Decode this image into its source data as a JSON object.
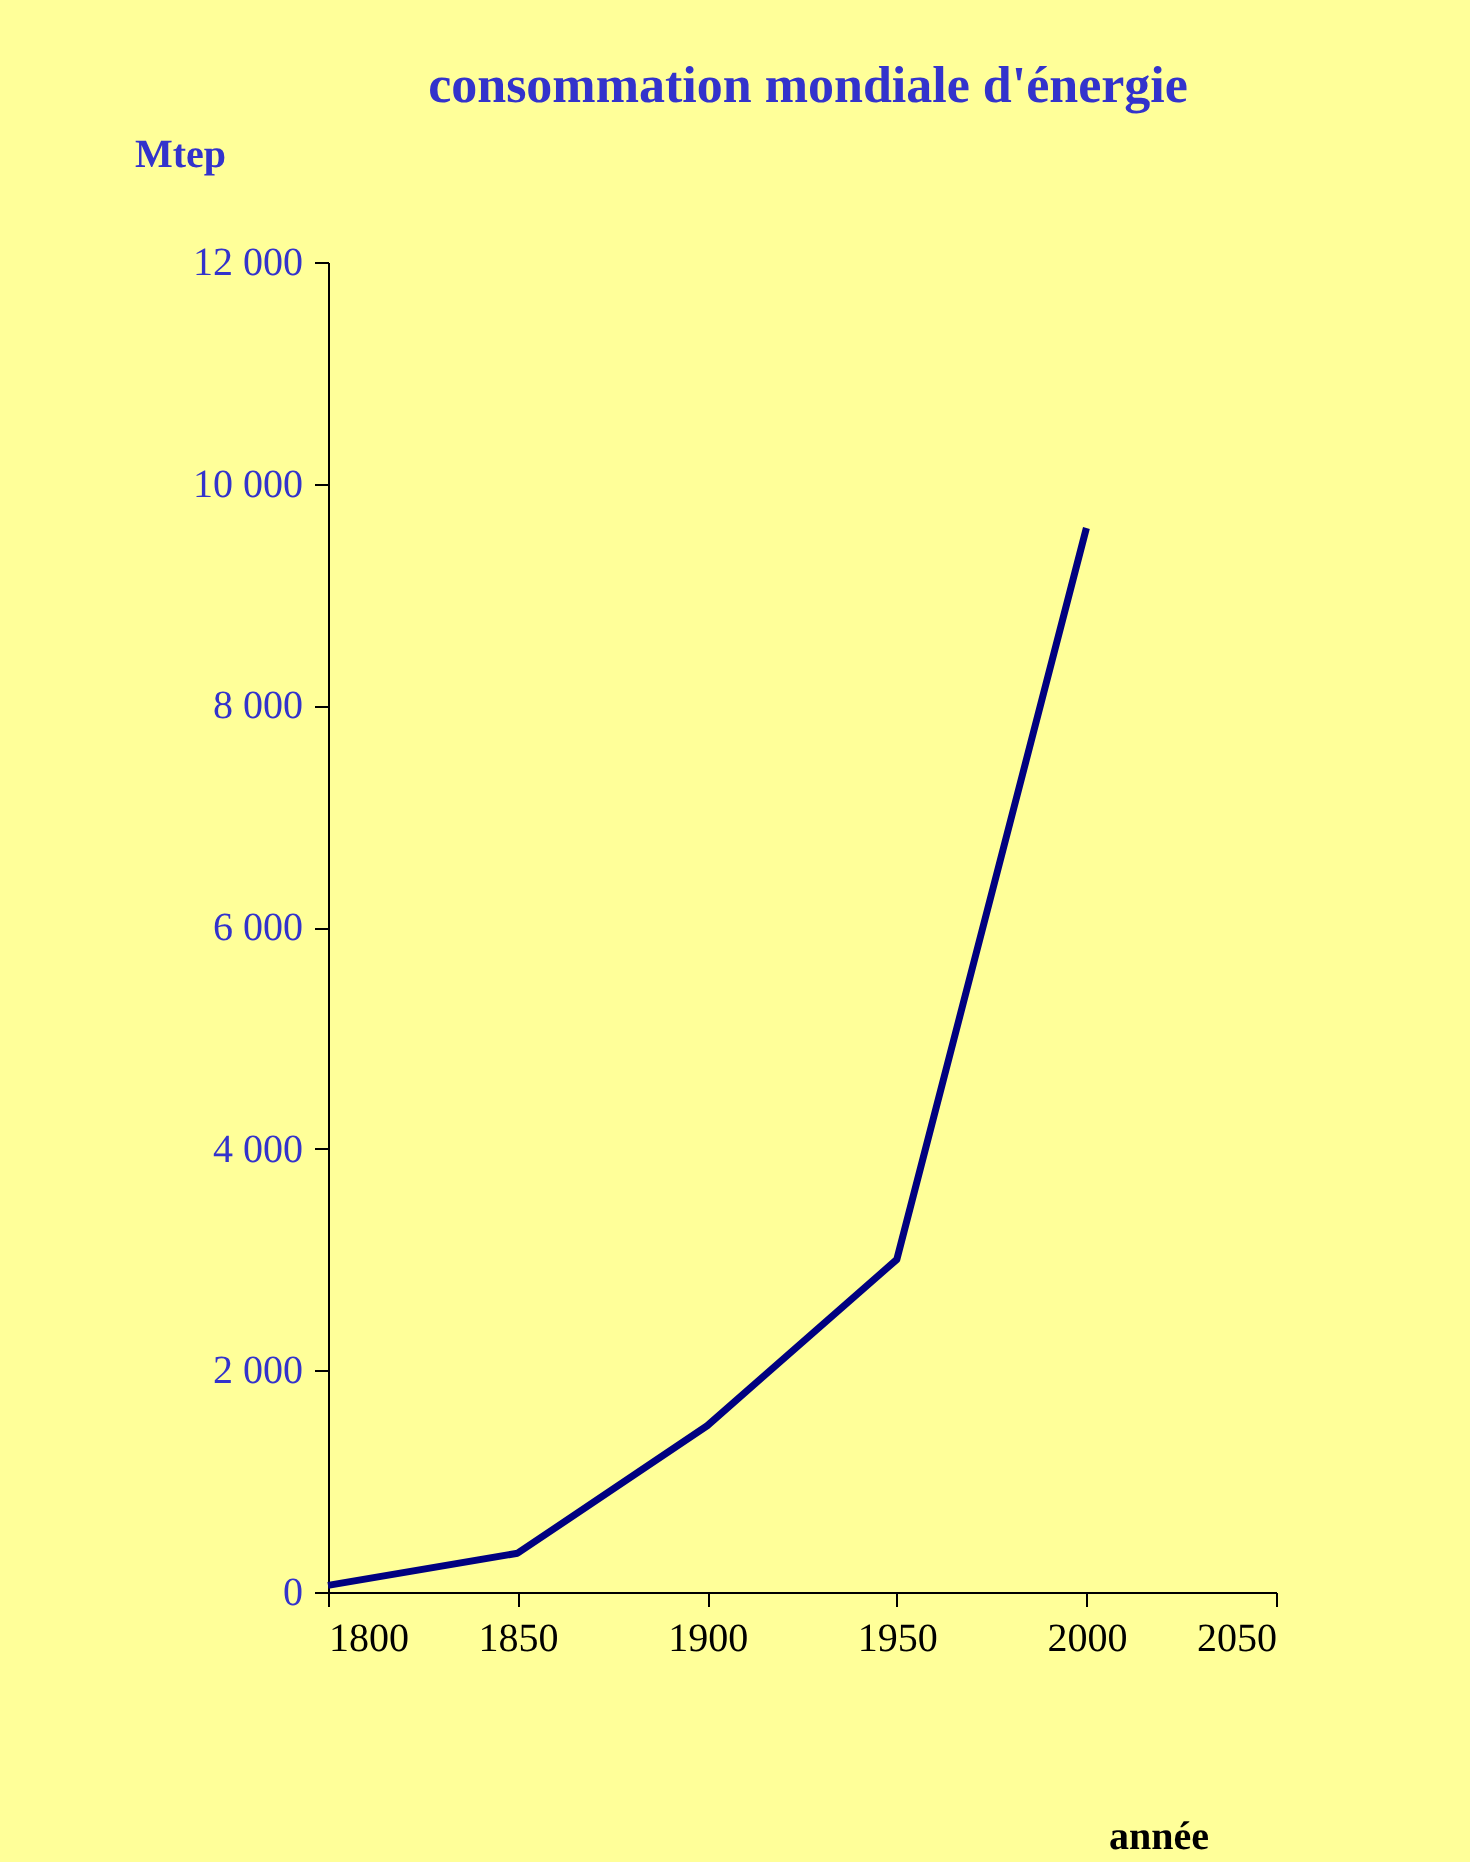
{
  "chart_data": {
    "type": "line",
    "title": "consommation mondiale d'énergie",
    "xlabel": "année",
    "ylabel": "Mtep",
    "x": [
      1800,
      1850,
      1900,
      1950,
      2000
    ],
    "series": [
      {
        "color": "#000080",
        "values": [
          60,
          350,
          1500,
          3000,
          9600
        ]
      }
    ],
    "xlim": [
      1800,
      2050
    ],
    "xticks": [
      1800,
      1850,
      1900,
      1950,
      2000,
      2050
    ],
    "ylim": [
      0,
      12000
    ],
    "yticks": [
      {
        "value": 0,
        "label": "0"
      },
      {
        "value": 2000,
        "label": "2 000"
      },
      {
        "value": 4000,
        "label": "4 000"
      },
      {
        "value": 6000,
        "label": "6 000"
      },
      {
        "value": 8000,
        "label": "8 000"
      },
      {
        "value": 10000,
        "label": "10 000"
      },
      {
        "value": 12000,
        "label": "12 000"
      }
    ],
    "grid": false,
    "marker": "none",
    "line_style": "solid"
  }
}
